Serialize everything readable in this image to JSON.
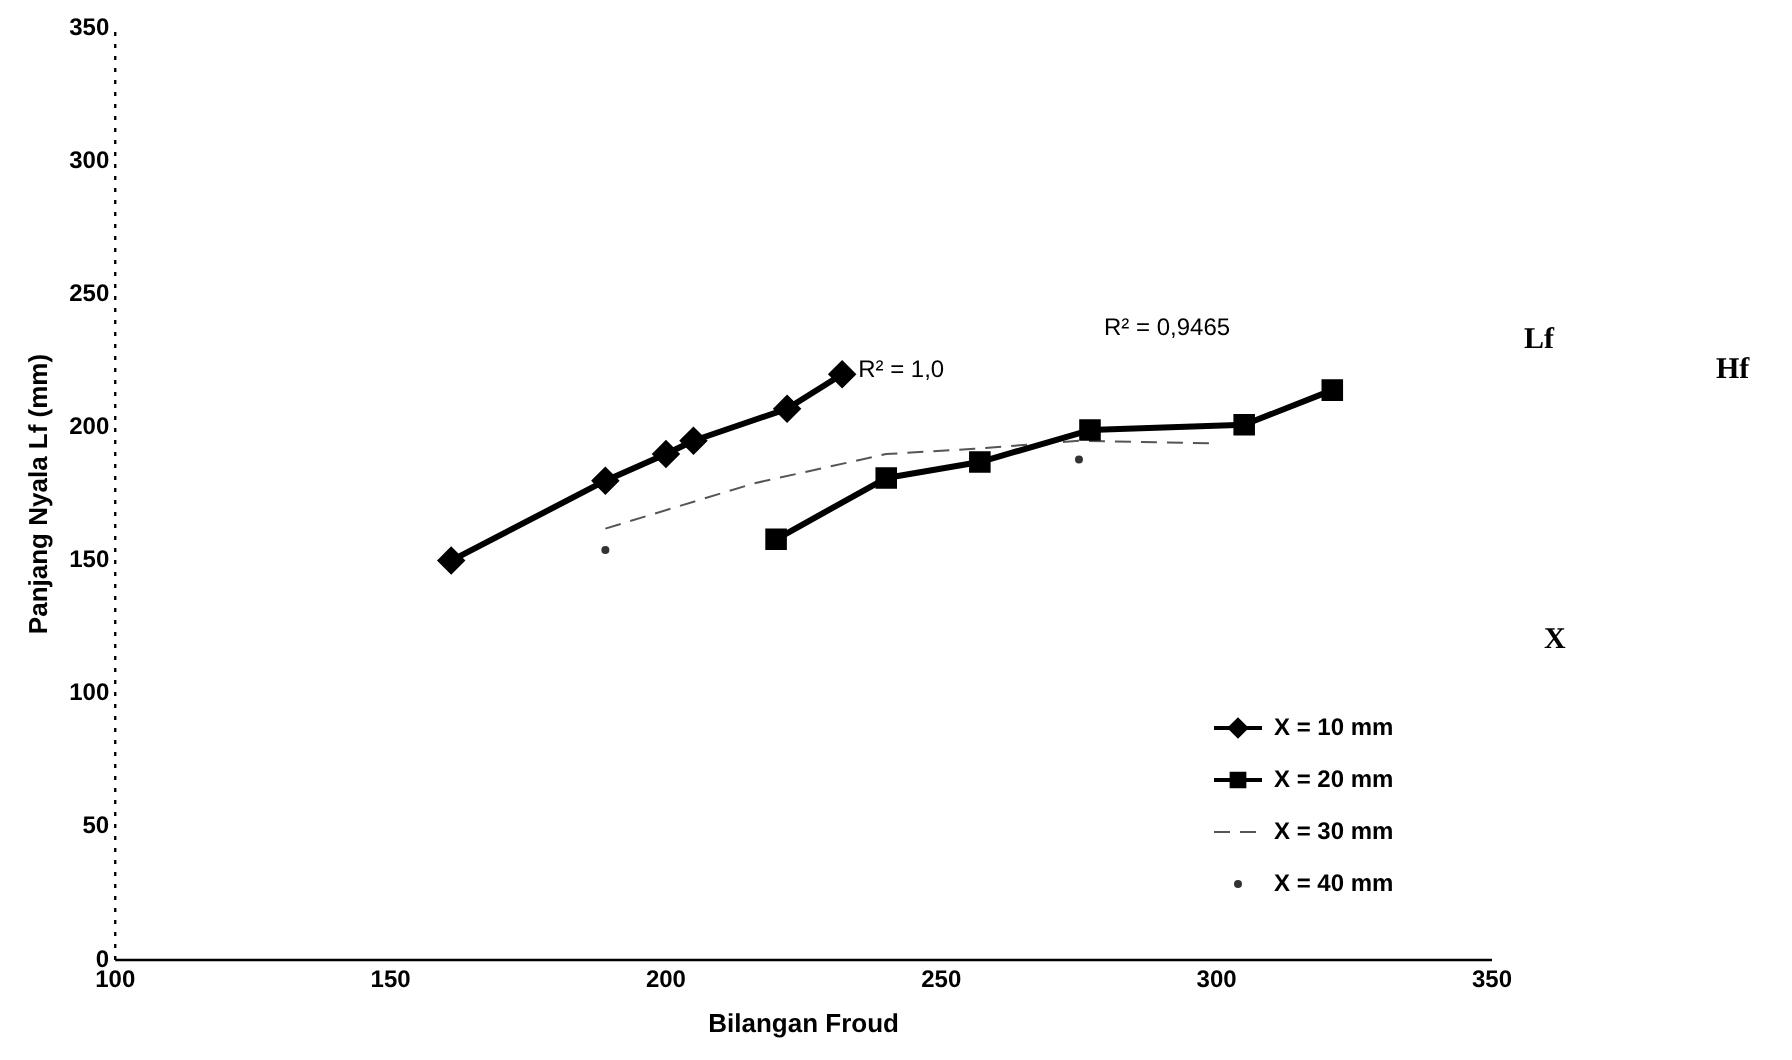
{
  "chart_data": {
    "type": "line",
    "xlabel": "Bilangan Froud",
    "ylabel": "Panjang Nyala Lf (mm)",
    "xlim": [
      100,
      350
    ],
    "xticks": [
      100,
      150,
      200,
      250,
      300,
      350
    ],
    "ylim": [
      0,
      350
    ],
    "yticks": [
      0,
      50,
      100,
      150,
      200,
      250,
      300,
      350
    ],
    "grid": false,
    "legend": "bottom right",
    "series": [
      {
        "name": "X = 10 mm",
        "color": "#000000",
        "marker": "diamond",
        "line_style": "solid",
        "x": [
          161,
          189,
          200,
          205,
          222,
          232
        ],
        "values": [
          150,
          180,
          190,
          195,
          207,
          220
        ]
      },
      {
        "name": "X = 20 mm",
        "color": "#000000",
        "marker": "square",
        "line_style": "solid",
        "x": [
          220,
          240,
          257,
          277,
          305,
          321
        ],
        "values": [
          158,
          181,
          187,
          199,
          201,
          214
        ]
      },
      {
        "name": "X = 30 mm",
        "color": "#555555",
        "marker": "none",
        "line_style": "dashed",
        "x": [
          189,
          216,
          240,
          256,
          275,
          299
        ],
        "values": [
          162,
          179,
          190,
          192,
          195,
          194
        ]
      },
      {
        "name": "X = 40 mm",
        "color": "#333333",
        "type": "scatter",
        "marker": "circle",
        "x": [
          189,
          275
        ],
        "values": [
          154,
          188
        ]
      }
    ],
    "annotations": [
      {
        "text": "R² = 1,0",
        "x": 232,
        "y": 220
      },
      "R² = 0,9465",
      "Lf",
      "Hf",
      "X"
    ]
  }
}
